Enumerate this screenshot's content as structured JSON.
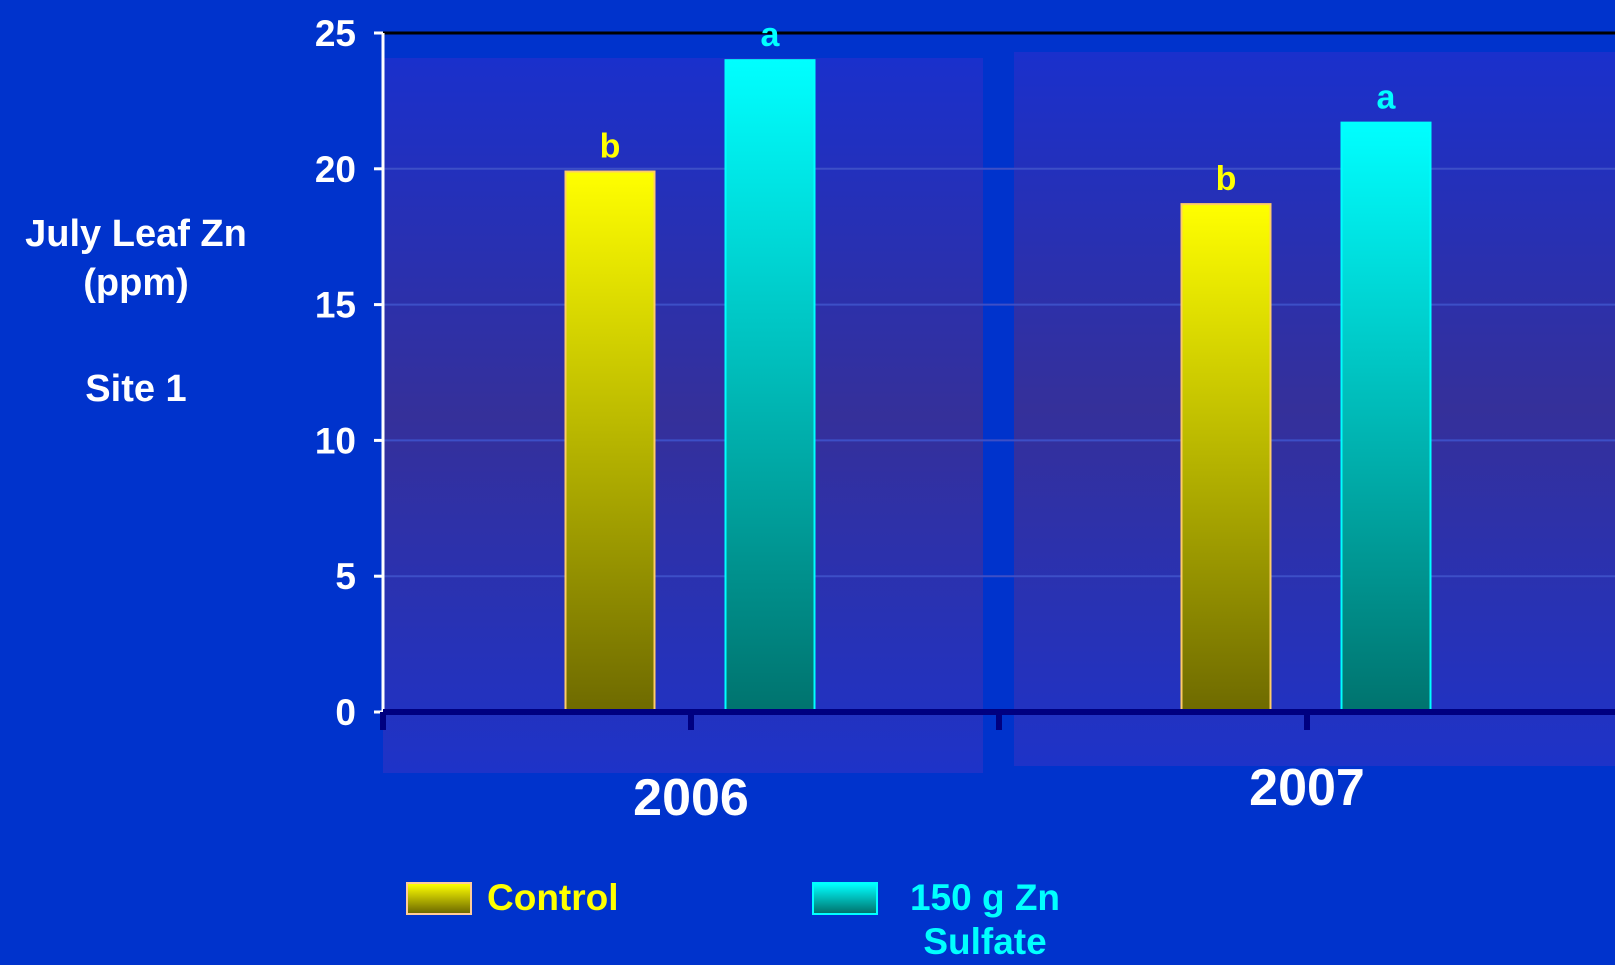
{
  "chart_data": {
    "type": "bar",
    "ylabel_lines": [
      "July Leaf Zn",
      "(ppm)"
    ],
    "site_label": "Site 1",
    "categories": [
      "2006",
      "2007"
    ],
    "ylim": [
      0,
      25
    ],
    "yticks": [
      0,
      5,
      10,
      15,
      20,
      25
    ],
    "grid": true,
    "legend_position": "bottom",
    "series": [
      {
        "name": "Control",
        "values": [
          19.9,
          18.7
        ],
        "letters": [
          "b",
          "b"
        ],
        "color_top": "#ffff00",
        "color_bottom": "#6e6a00",
        "label_color": "#ffff00"
      },
      {
        "name": "150 g Zn Sulfate",
        "values": [
          24.0,
          21.7
        ],
        "letters": [
          "a",
          "a"
        ],
        "color_top": "#00ffff",
        "color_bottom": "#00736e",
        "label_color": "#00ffff"
      }
    ]
  },
  "legend": {
    "control_label": "Control",
    "zn_label_line1": "150 g Zn",
    "zn_label_line2": "Sulfate"
  },
  "colors": {
    "background": "#0033cc",
    "plot_area": "#2a3aae",
    "axis": "#000080"
  }
}
